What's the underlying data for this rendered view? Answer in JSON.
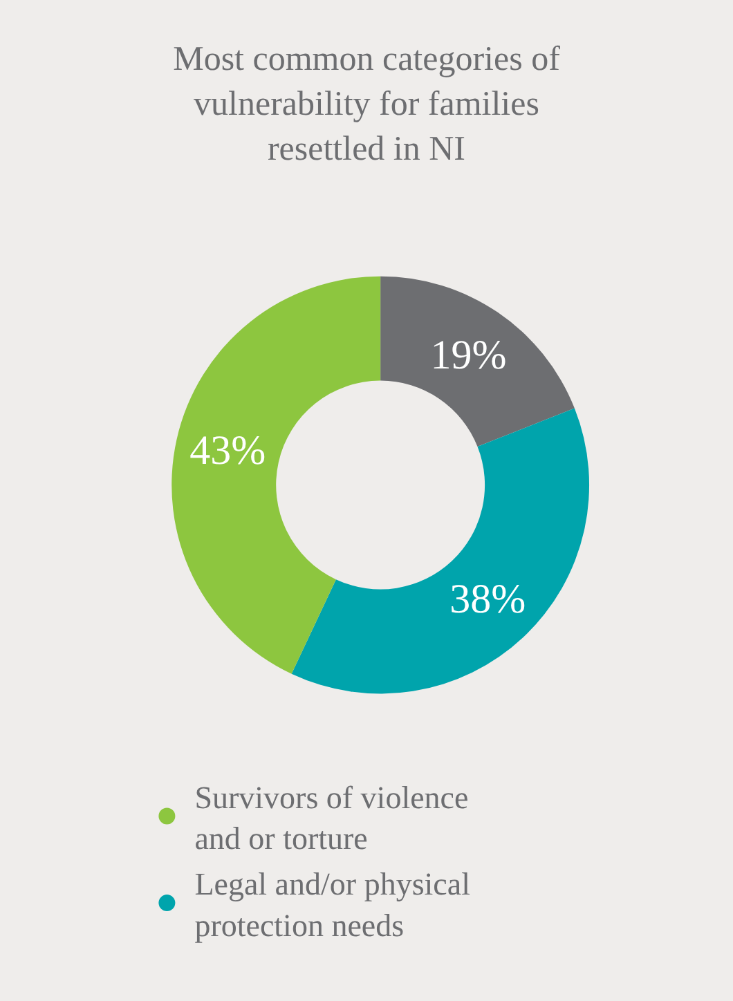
{
  "chart_data": {
    "type": "donut",
    "title": "Most common categories of vulnerability for families resettled in NI",
    "categories": [
      null,
      "Legal and/or physical protection needs",
      "Survivors of violence and or torture"
    ],
    "values": [
      19,
      38,
      43
    ],
    "colors": [
      "#6d6e71",
      "#00a4ac",
      "#8dc63f"
    ],
    "value_labels": [
      "19%",
      "38%",
      "43%"
    ],
    "legend": "bottom"
  }
}
